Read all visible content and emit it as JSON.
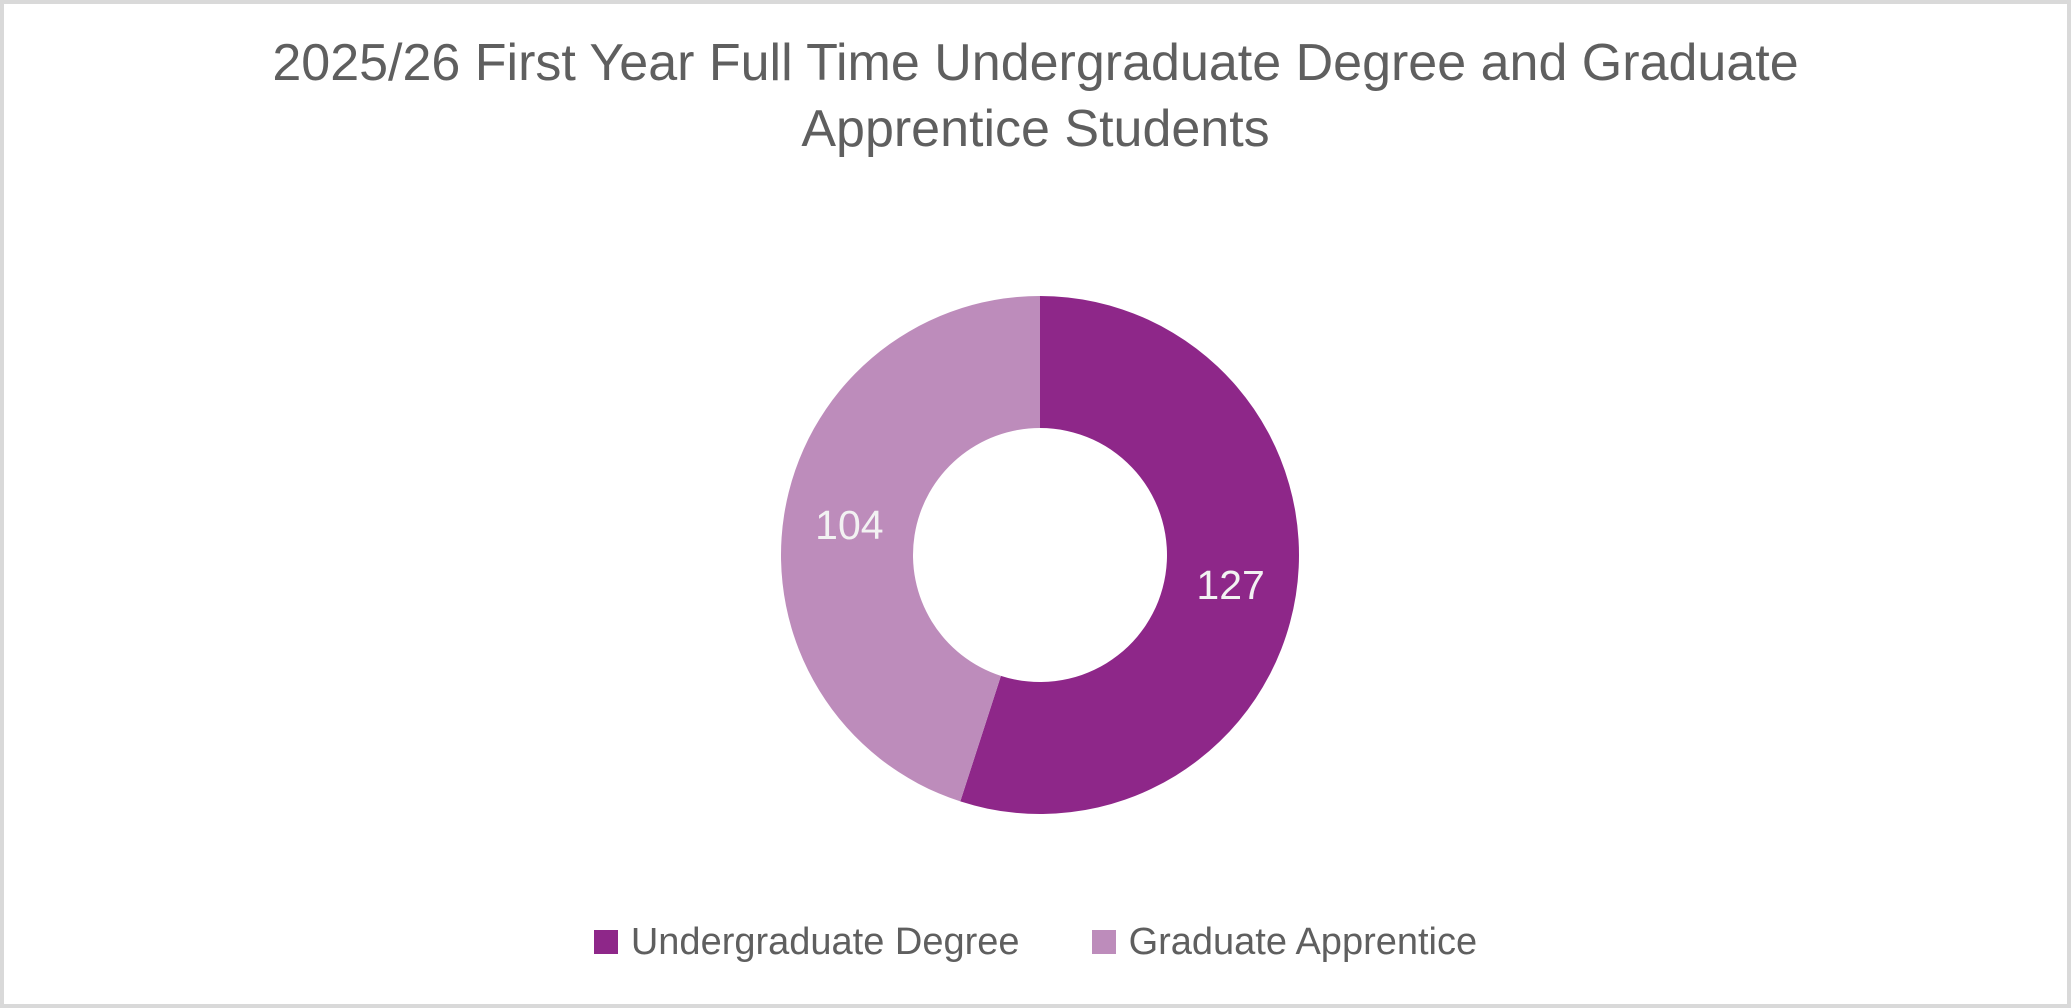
{
  "title": {
    "text": "2025/26 First Year Full Time Undergraduate Degree and Graduate Apprentice Students"
  },
  "chart_data": {
    "type": "pie",
    "subtype": "doughnut",
    "title": "2025/26 First Year Full Time Undergraduate Degree and Graduate Apprentice Students",
    "categories": [
      "Undergraduate Degree",
      "Graduate Apprentice"
    ],
    "values": [
      127,
      104
    ],
    "data_labels": [
      "127",
      "104"
    ],
    "colors": [
      "#8E2789",
      "#BD8CBB"
    ],
    "label_color": "#F2F2F2",
    "start_angle_deg": 0,
    "direction": "clockwise",
    "hole_ratio": 0.49,
    "legend_position": "bottom",
    "grid": false
  },
  "legend": {
    "items": [
      {
        "label": "Undergraduate Degree",
        "color": "#8E2789"
      },
      {
        "label": "Graduate Apprentice",
        "color": "#BD8CBB"
      }
    ]
  },
  "frame": {
    "background": "#FFFFFF",
    "border_color": "#D9D9D9",
    "title_color": "#5F5F5F",
    "legend_text_color": "#5F5F5F"
  }
}
